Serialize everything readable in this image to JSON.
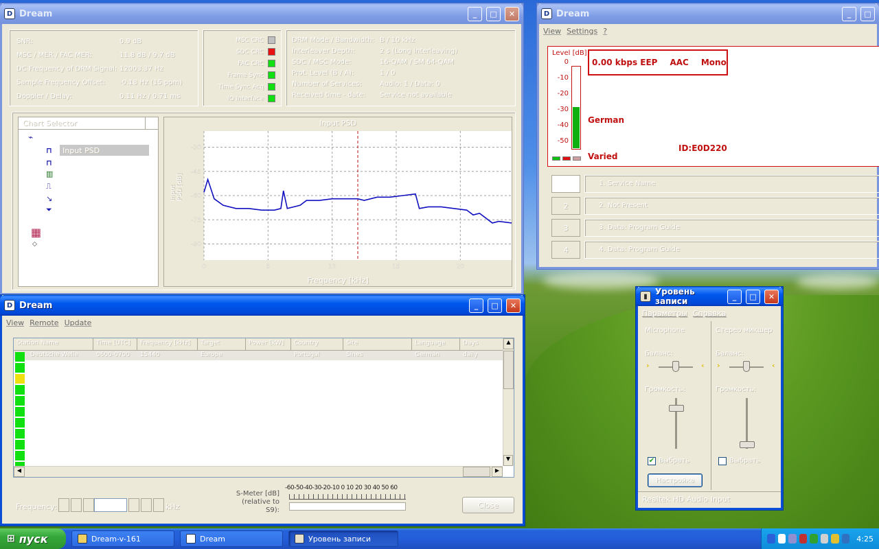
{
  "dream_main": {
    "title": "Dream",
    "status_rows": [
      {
        "label": "SNR:",
        "value": "0.9 dB"
      },
      {
        "label": "MSC / MER / FAC MER:",
        "value": "11.8 dB / 9.7 dB"
      },
      {
        "label": "DC Frequency of DRM Signal:",
        "value": "12003.37 Hz"
      },
      {
        "label": "Sample Frequency Offset:",
        "value": "-0.18 Hz (15 ppm)"
      },
      {
        "label": "Doppler / Delay:",
        "value": "0.11 Hz / 0.71 ms"
      }
    ],
    "leds": [
      {
        "label": "MSC CRC",
        "color": "#c0c0c0"
      },
      {
        "label": "SDC CRC",
        "color": "#e81010"
      },
      {
        "label": "FAC CRC",
        "color": "#10e010"
      },
      {
        "label": "Frame Sync",
        "color": "#10e010"
      },
      {
        "label": "Time Sync Acq",
        "color": "#10e010"
      },
      {
        "label": "IO Interface",
        "color": "#10e010"
      }
    ],
    "info_rows": [
      {
        "label": "DRM Mode / Bandwidth:",
        "value": "B / 10 kHz"
      },
      {
        "label": "Interleaver Depth:",
        "value": "2 s (Long Interleaving)"
      },
      {
        "label": "SDC / MSC Mode:",
        "value": "16-QAM / SM 64-QAM"
      },
      {
        "label": "Prot. Level (B / A):",
        "value": "1 / 0"
      },
      {
        "label": "Number of Services:",
        "value": "Audio: 1 / Data: 0"
      },
      {
        "label": "Received time - date:",
        "value": "Service not available"
      }
    ],
    "tree_header": "Chart Selector",
    "tree_selected": "Input PSD",
    "chart_title": "Input PSD",
    "chart_xlabel": "Frequency [kHz]",
    "chart_ylabel": "Input PSD [dB]",
    "buttons": {
      "close": "Close"
    }
  },
  "chart_data": {
    "type": "line",
    "title": "Input PSD",
    "xlabel": "Frequency [kHz]",
    "ylabel": "Input PSD [dB]",
    "xlim": [
      0,
      24
    ],
    "ylim": [
      -100,
      -20
    ],
    "xticks": [
      0,
      5,
      10,
      15,
      20
    ],
    "yticks": [
      -30,
      -45,
      -60,
      -75,
      -90
    ],
    "marker_x": 12,
    "grid": true,
    "series": [
      {
        "color": "#1010c0",
        "x": [
          0,
          0.3,
          0.8,
          1.5,
          2.5,
          3.5,
          4.5,
          5.5,
          6.0,
          6.2,
          6.5,
          7.5,
          8.0,
          9.0,
          10.0,
          11.0,
          12.0,
          12.5,
          13.5,
          14.5,
          15.5,
          16.5,
          16.8,
          17.5,
          18.5,
          19.5,
          20.5,
          21.0,
          21.5,
          22.5,
          23.0,
          24.0
        ],
        "y": [
          -58,
          -50,
          -62,
          -66,
          -68,
          -68,
          -69,
          -69,
          -68,
          -57,
          -68,
          -66,
          -63,
          -63,
          -62,
          -62,
          -62,
          -63,
          -61,
          -61,
          -60,
          -59,
          -68,
          -67,
          -67,
          -68,
          -69,
          -72,
          -71,
          -77,
          -76,
          -77
        ]
      }
    ]
  },
  "dream_service": {
    "title": "Dream",
    "menu": [
      "View",
      "Settings",
      "?"
    ],
    "level_label": "Level [dB]",
    "level_ticks": [
      "0",
      "-10",
      "-20",
      "-30",
      "-40",
      "-50"
    ],
    "level_fraction": 0.5,
    "bitrate": "0.00 kbps EEP",
    "codec": "AAC",
    "mode": "Mono",
    "language": "German",
    "program_type": "Varied",
    "service_id": "ID:E0D220",
    "services": [
      {
        "num": "",
        "label": "1. Service Name"
      },
      {
        "num": "2",
        "label": "2. Not Present"
      },
      {
        "num": "3",
        "label": "3. Data: Program Guide"
      },
      {
        "num": "4",
        "label": "4. Data: Program Guide"
      }
    ]
  },
  "dream_stations": {
    "title": "Dream",
    "menu": [
      "View",
      "Remote",
      "Update"
    ],
    "columns": [
      "Station Name",
      "Time [UTC]",
      "Frequency [kHz]",
      "Target",
      "Power [kW]",
      "Country",
      "Site",
      "Language",
      "Days"
    ],
    "rows": [
      {
        "name": "Deutsche Welle",
        "time": "0600-0700",
        "freq": "15440",
        "target": "Europe",
        "power": "",
        "country": "Portugal",
        "site": "Sines",
        "language": "German",
        "days": "daily"
      }
    ],
    "smeter_label": "S-Meter [dB]",
    "smeter_sublabel": "(relative to S9):",
    "smeter_scale": "-60-50-40-30-20-10  0  10 20 30 40 50 60",
    "freq_unit": "kHz",
    "freq_prefix": "Frequency:",
    "close_button": "Close"
  },
  "mixer": {
    "title": "Уровень записи",
    "menu": [
      "Параметры",
      "Справка"
    ],
    "channels": [
      {
        "name": "Microphone",
        "balance_label": "Баланс:",
        "volume_label": "Громкость:",
        "checkbox_label": "Выбрать",
        "checked": true,
        "volume_fraction": 0.8
      },
      {
        "name": "Стерео микшер",
        "balance_label": "Баланс:",
        "volume_label": "Громкость:",
        "checkbox_label": "Выбрать",
        "checked": false,
        "volume_fraction": 0.05
      }
    ],
    "advanced_button": "Настройка",
    "status": "Realtek HD Audio Input"
  },
  "taskbar": {
    "start_label": "пуск",
    "tasks": [
      {
        "label": "Dream-v-161",
        "active": false
      },
      {
        "label": "Dream",
        "active": false
      },
      {
        "label": "Уровень записи",
        "active": true
      }
    ],
    "clock": "4:25"
  }
}
